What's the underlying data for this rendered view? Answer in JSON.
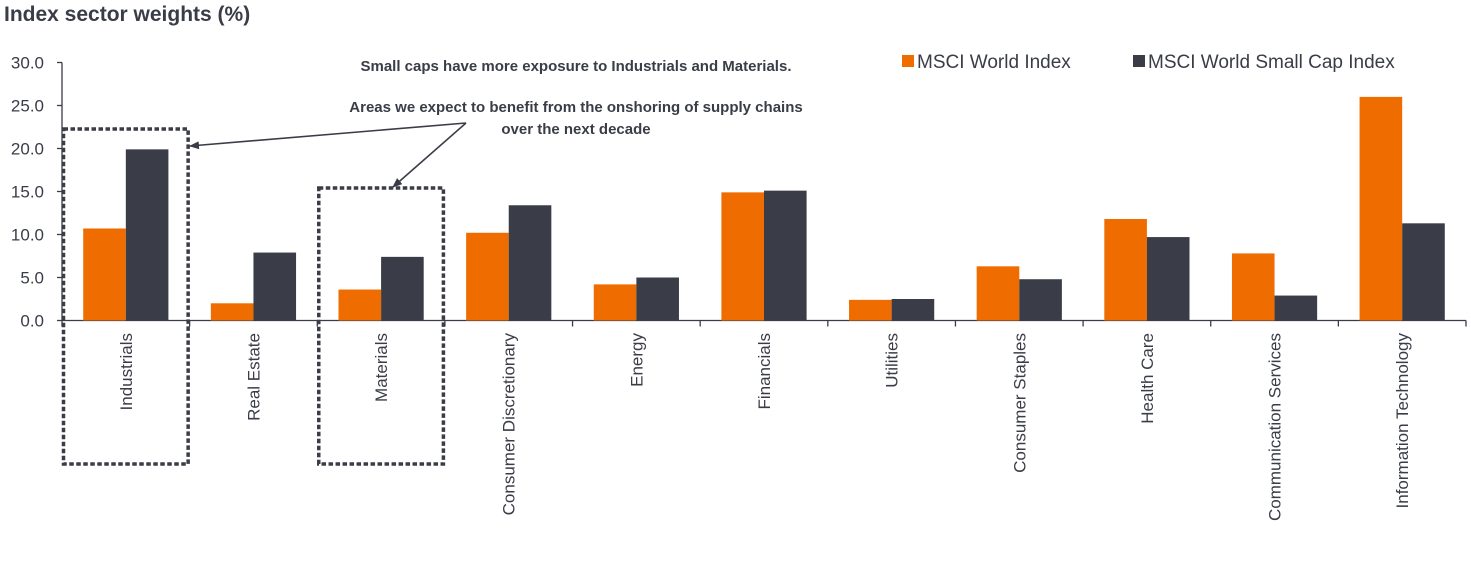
{
  "chart_data": {
    "type": "bar",
    "title": "Index sector weights (%)",
    "xlabel": "",
    "ylabel": "",
    "ylim": [
      0,
      30
    ],
    "yticks": [
      "0.0",
      "5.0",
      "10.0",
      "15.0",
      "20.0",
      "25.0",
      "30.0"
    ],
    "ytick_values": [
      0,
      5,
      10,
      15,
      20,
      25,
      30
    ],
    "grid": false,
    "legend_position": "top-right",
    "categories": [
      "Industrials",
      "Real Estate",
      "Materials",
      "Consumer Discretionary",
      "Energy",
      "Financials",
      "Utilities",
      "Consumer Staples",
      "Health Care",
      "Communication Services",
      "Information Technology"
    ],
    "series": [
      {
        "name": "MSCI World Index",
        "color": "#ef6c00",
        "values": [
          10.7,
          2.0,
          3.6,
          10.2,
          4.2,
          14.9,
          2.4,
          6.3,
          11.8,
          7.8,
          26.0
        ]
      },
      {
        "name": "MSCI World Small Cap Index",
        "color": "#3a3d47",
        "values": [
          19.9,
          7.9,
          7.4,
          13.4,
          5.0,
          15.1,
          2.5,
          4.8,
          9.7,
          2.9,
          11.3
        ]
      }
    ],
    "annotations": {
      "headline": "Small caps have more exposure to Industrials and Materials.",
      "callout_line1": "Areas we expect to benefit from the onshoring of supply chains",
      "callout_line2": "over the next decade",
      "highlighted_categories": [
        "Industrials",
        "Materials"
      ]
    }
  }
}
